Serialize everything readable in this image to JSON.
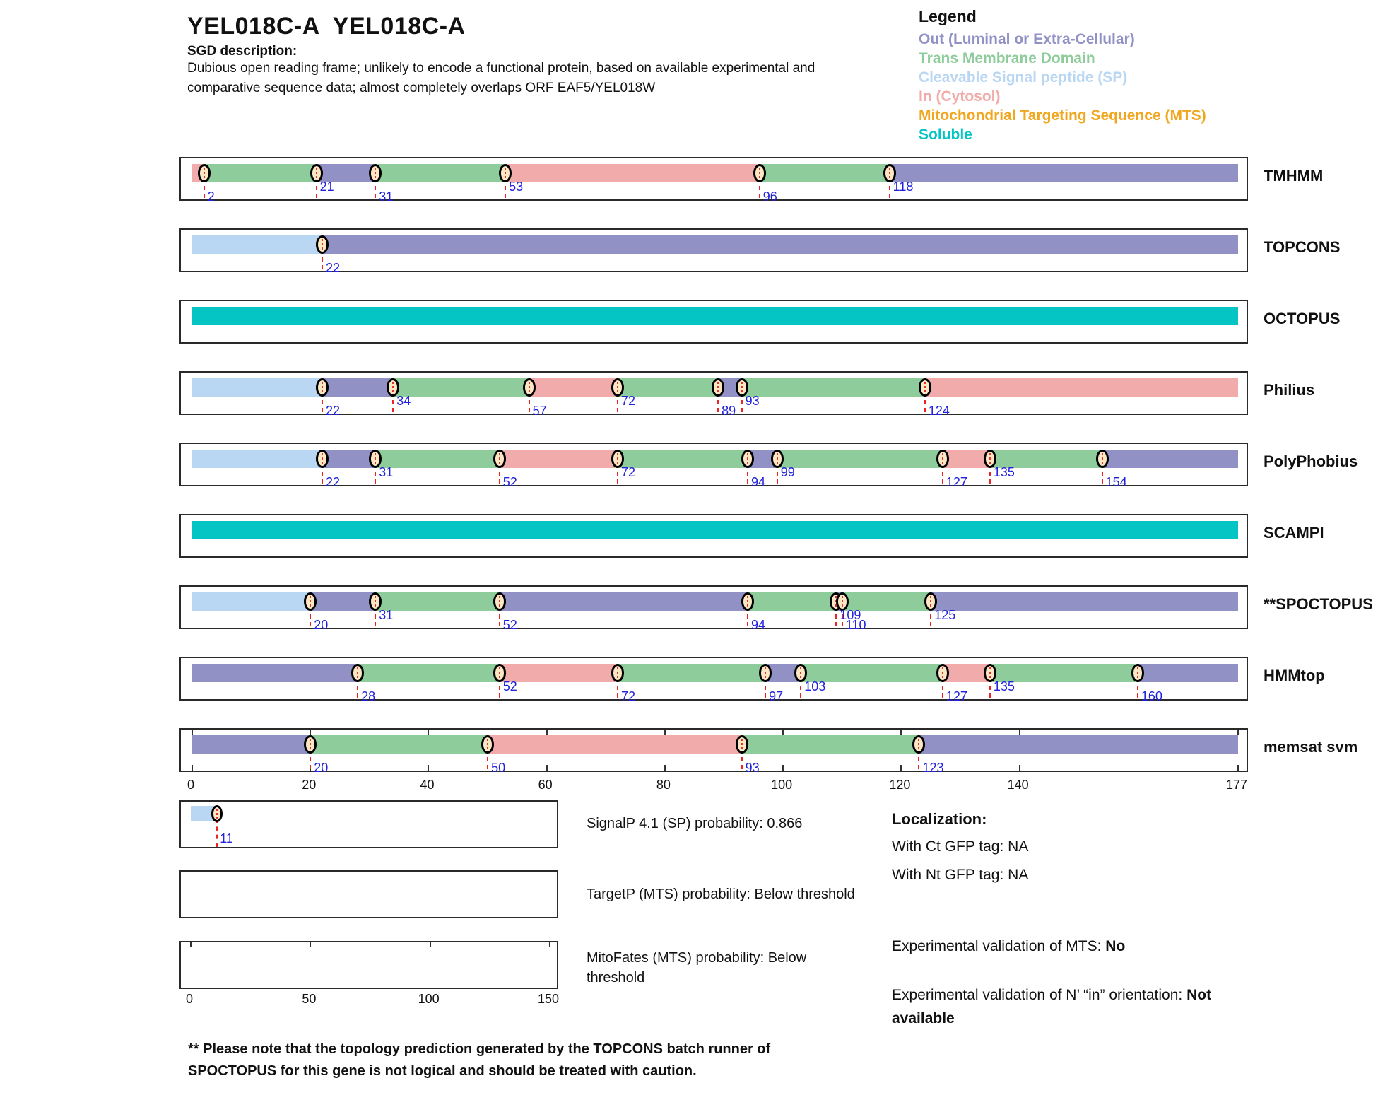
{
  "header": {
    "title": "YEL018C-A  YEL018C-A",
    "sgd_label": "SGD description:",
    "description_line1": "Dubious open reading frame; unlikely to encode a functional protein, based on available experimental and",
    "description_line2": "comparative sequence data; almost completely overlaps ORF EAF5/YEL018W"
  },
  "legend": {
    "title": "Legend",
    "items": [
      {
        "label": "Out (Luminal or Extra-Cellular)",
        "color_key": "out"
      },
      {
        "label": "Trans Membrane Domain",
        "color_key": "tm"
      },
      {
        "label": "Cleavable Signal peptide (SP)",
        "color_key": "sp"
      },
      {
        "label": "In (Cytosol)",
        "color_key": "in"
      },
      {
        "label": "Mitochondrial Targeting Sequence (MTS)",
        "color_key": "mts"
      },
      {
        "label": "Soluble",
        "color_key": "soluble"
      }
    ]
  },
  "colors": {
    "out": "#9191c6",
    "tm": "#8ecd9b",
    "sp": "#b9d6f2",
    "in": "#f2abab",
    "mts": "#f0a71f",
    "soluble": "#04c4c4",
    "boundary_number": "#2222dd",
    "dashed_line": "#ee2222",
    "marker_fill": "#fbe7c3"
  },
  "chart_data": {
    "type": "topology-tracks",
    "sequence_length": 177,
    "axis_ticks": [
      0,
      20,
      40,
      60,
      80,
      100,
      120,
      140,
      177
    ],
    "region_types": {
      "out": "Out (Luminal or Extra-Cellular)",
      "tm": "Trans Membrane Domain",
      "sp": "Cleavable Signal peptide (SP)",
      "in": "In (Cytosol)",
      "soluble": "Soluble"
    },
    "tracks": [
      {
        "name": "TMHMM",
        "segments": [
          [
            "in",
            0,
            2
          ],
          [
            "tm",
            2,
            21
          ],
          [
            "out",
            21,
            31
          ],
          [
            "tm",
            31,
            53
          ],
          [
            "in",
            53,
            96
          ],
          [
            "tm",
            96,
            118
          ],
          [
            "out",
            118,
            177
          ]
        ],
        "markers": [
          [
            2,
            2
          ],
          [
            21,
            1
          ],
          [
            31,
            2
          ],
          [
            53,
            1
          ],
          [
            96,
            2
          ],
          [
            118,
            1
          ]
        ]
      },
      {
        "name": "TOPCONS",
        "segments": [
          [
            "sp",
            0,
            22
          ],
          [
            "out",
            22,
            177
          ]
        ],
        "markers": [
          [
            22,
            2
          ]
        ]
      },
      {
        "name": "OCTOPUS",
        "segments": [
          [
            "soluble",
            0,
            177
          ]
        ],
        "markers": []
      },
      {
        "name": "Philius",
        "segments": [
          [
            "sp",
            0,
            22
          ],
          [
            "out",
            22,
            34
          ],
          [
            "tm",
            34,
            57
          ],
          [
            "in",
            57,
            72
          ],
          [
            "tm",
            72,
            89
          ],
          [
            "out",
            89,
            93
          ],
          [
            "tm",
            93,
            124
          ],
          [
            "in",
            124,
            177
          ]
        ],
        "markers": [
          [
            22,
            2
          ],
          [
            34,
            1
          ],
          [
            57,
            2
          ],
          [
            72,
            1
          ],
          [
            89,
            2
          ],
          [
            93,
            1
          ],
          [
            124,
            2
          ]
        ]
      },
      {
        "name": "PolyPhobius",
        "segments": [
          [
            "sp",
            0,
            22
          ],
          [
            "out",
            22,
            31
          ],
          [
            "tm",
            31,
            52
          ],
          [
            "in",
            52,
            72
          ],
          [
            "tm",
            72,
            94
          ],
          [
            "out",
            94,
            99
          ],
          [
            "tm",
            99,
            127
          ],
          [
            "in",
            127,
            135
          ],
          [
            "tm",
            135,
            154
          ],
          [
            "out",
            154,
            177
          ]
        ],
        "markers": [
          [
            22,
            2
          ],
          [
            31,
            1
          ],
          [
            52,
            2
          ],
          [
            72,
            1
          ],
          [
            94,
            2
          ],
          [
            99,
            1
          ],
          [
            127,
            2
          ],
          [
            135,
            1
          ],
          [
            154,
            2
          ]
        ]
      },
      {
        "name": "SCAMPI",
        "segments": [
          [
            "soluble",
            0,
            177
          ]
        ],
        "markers": []
      },
      {
        "name": "**SPOCTOPUS",
        "segments": [
          [
            "sp",
            0,
            20
          ],
          [
            "out",
            20,
            31
          ],
          [
            "tm",
            31,
            52
          ],
          [
            "out",
            52,
            94
          ],
          [
            "tm",
            94,
            109
          ],
          [
            "out",
            109,
            110
          ],
          [
            "tm",
            110,
            125
          ],
          [
            "out",
            125,
            177
          ]
        ],
        "markers": [
          [
            20,
            2
          ],
          [
            31,
            1
          ],
          [
            52,
            2
          ],
          [
            94,
            2
          ],
          [
            109,
            1
          ],
          [
            110,
            2
          ],
          [
            125,
            1
          ]
        ]
      },
      {
        "name": "HMMtop",
        "segments": [
          [
            "out",
            0,
            28
          ],
          [
            "tm",
            28,
            52
          ],
          [
            "in",
            52,
            72
          ],
          [
            "tm",
            72,
            97
          ],
          [
            "out",
            97,
            103
          ],
          [
            "tm",
            103,
            127
          ],
          [
            "in",
            127,
            135
          ],
          [
            "tm",
            135,
            160
          ],
          [
            "out",
            160,
            177
          ]
        ],
        "markers": [
          [
            28,
            2
          ],
          [
            52,
            1
          ],
          [
            72,
            2
          ],
          [
            97,
            2
          ],
          [
            103,
            1
          ],
          [
            127,
            2
          ],
          [
            135,
            1
          ],
          [
            160,
            2
          ]
        ]
      },
      {
        "name": "memsat svm",
        "segments": [
          [
            "out",
            0,
            20
          ],
          [
            "tm",
            20,
            50
          ],
          [
            "in",
            50,
            93
          ],
          [
            "tm",
            93,
            123
          ],
          [
            "out",
            123,
            177
          ]
        ],
        "markers": [
          [
            20,
            2
          ],
          [
            50,
            2
          ],
          [
            93,
            2
          ],
          [
            123,
            2
          ]
        ],
        "ruler": true
      }
    ]
  },
  "predictors": {
    "signalp": {
      "caption": "SignalP 4.1 (SP) probability: 0.866",
      "segment_end": 11,
      "marker_label": "11",
      "scale_max": 150
    },
    "targetp": {
      "caption": "TargetP (MTS) probability: Below threshold"
    },
    "mitofates": {
      "caption_line1": "MitoFates (MTS) probability: Below",
      "caption_line2": "threshold",
      "axis_ticks": [
        0,
        50,
        100,
        150
      ],
      "scale_max": 150
    }
  },
  "localization": {
    "title": "Localization:",
    "ct_line": "With Ct GFP tag: NA",
    "nt_line": "With Nt GFP tag: NA",
    "mts_label": "Experimental validation of MTS: ",
    "mts_value": "No",
    "orientation_label": "Experimental validation of N’ “in” orientation: ",
    "orientation_value": "Not available",
    "orientation_value_line1": "Not",
    "orientation_value_line2": "available"
  },
  "footnote": {
    "line1": "** Please note that the topology prediction generated by the TOPCONS batch runner of",
    "line2": "SPOCTOPUS for this gene is not logical and should be treated with caution."
  }
}
